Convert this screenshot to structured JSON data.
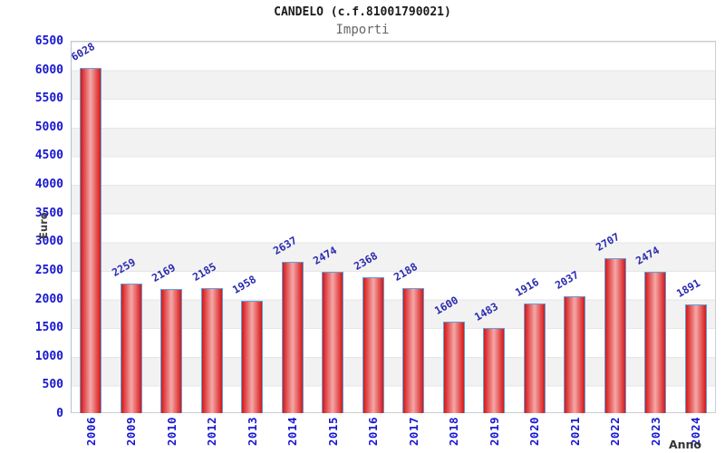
{
  "window": {
    "title": "CANDELO (c.f.81001790021)",
    "subtitle": "Importi"
  },
  "chart_data": {
    "type": "bar",
    "title": "CANDELO (c.f.81001790021)",
    "subtitle": "Importi",
    "xlabel": "Anno",
    "ylabel": "Euro",
    "categories": [
      "2006",
      "2009",
      "2010",
      "2012",
      "2013",
      "2014",
      "2015",
      "2016",
      "2017",
      "2018",
      "2019",
      "2020",
      "2021",
      "2022",
      "2023",
      "2024"
    ],
    "values": [
      6028,
      2259,
      2169,
      2185,
      1958,
      2637,
      2474,
      2368,
      2188,
      1600,
      1483,
      1916,
      2037,
      2707,
      2474,
      1891
    ],
    "ylim": [
      0,
      6500
    ],
    "yticks": [
      0,
      500,
      1000,
      1500,
      2000,
      2500,
      3000,
      3500,
      4000,
      4500,
      5000,
      5500,
      6000,
      6500
    ],
    "grid": true,
    "legend": false,
    "band_fill_alt": "#f2f2f2",
    "grid_color": "#e6e6e6",
    "bar_edge_color": "#d61717",
    "bar_center_color": "#f5a8a8",
    "bar_border_color": "#58a2de",
    "tick_label_color": "#1717cf",
    "value_label_color": "#2b2bb0"
  }
}
